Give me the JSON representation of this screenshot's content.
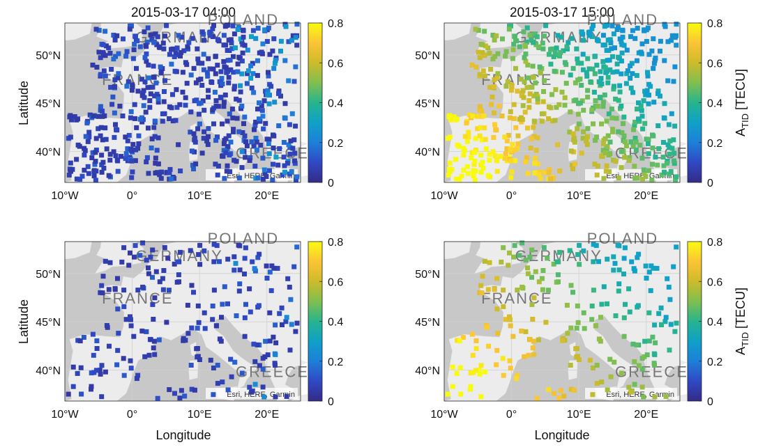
{
  "attribution": "Esri, HERE, Garmin",
  "colors": {
    "land": "#ececec",
    "sea": "#c8c8c8",
    "grid": "#cfcfcf",
    "colormap": [
      "#352a87",
      "#2f49c4",
      "#1e7fd9",
      "#0fa1c8",
      "#27b48e",
      "#80bf4f",
      "#cdbb2a",
      "#fbc436",
      "#f9fb0e"
    ]
  },
  "map_labels": [
    "FRANCE",
    "GERMANY",
    "POLAND",
    "GREECE"
  ],
  "chart_data": [
    {
      "type": "scatter",
      "title": "2015-03-17 04:00",
      "xlabel": "",
      "ylabel": "Latitude",
      "xlim": [
        -10,
        25
      ],
      "ylim": [
        36.8,
        53.3
      ],
      "xticks": [
        "10°W",
        "0°",
        "10°E",
        "20°E"
      ],
      "yticks": [
        "40°N",
        "45°N",
        "50°N"
      ],
      "colorbar": {
        "label": "",
        "ticks": [
          "0",
          "0.2",
          "0.4",
          "0.6",
          "0.8"
        ],
        "range": [
          0,
          0.8
        ]
      },
      "points": {
        "description": "dense network of stations across Europe",
        "count": 600,
        "value_range": [
          0.05,
          0.25
        ],
        "typical_value": 0.1
      }
    },
    {
      "type": "scatter",
      "title": "2015-03-17 15:00",
      "xlabel": "",
      "ylabel": "",
      "xlim": [
        -10,
        25
      ],
      "ylim": [
        36.8,
        53.3
      ],
      "xticks": [
        "10°W",
        "0°",
        "10°E",
        "20°E"
      ],
      "yticks": [
        "40°N",
        "45°N",
        "50°N"
      ],
      "colorbar": {
        "label": "A_TID [TECU]",
        "ticks": [
          "0",
          "0.2",
          "0.4",
          "0.6",
          "0.8"
        ],
        "range": [
          0,
          0.8
        ]
      },
      "points": {
        "description": "dense network; high amplitude in south-west, lower toward north-east",
        "count": 600,
        "value_range": [
          0.25,
          0.8
        ]
      }
    },
    {
      "type": "scatter",
      "title": "",
      "xlabel": "Longitude",
      "ylabel": "Latitude",
      "xlim": [
        -10,
        25
      ],
      "ylim": [
        36.8,
        53.3
      ],
      "xticks": [
        "10°W",
        "0°",
        "10°E",
        "20°E"
      ],
      "yticks": [
        "40°N",
        "45°N",
        "50°N"
      ],
      "colorbar": {
        "label": "",
        "ticks": [
          "0",
          "0.2",
          "0.4",
          "0.6",
          "0.8"
        ],
        "range": [
          0,
          0.8
        ]
      },
      "points": {
        "description": "sparse station subset",
        "count": 230,
        "value_range": [
          0.05,
          0.2
        ],
        "typical_value": 0.1
      }
    },
    {
      "type": "scatter",
      "title": "",
      "xlabel": "Longitude",
      "ylabel": "",
      "xlim": [
        -10,
        25
      ],
      "ylim": [
        36.8,
        53.3
      ],
      "xticks": [
        "10°W",
        "0°",
        "10°E",
        "20°E"
      ],
      "yticks": [
        "40°N",
        "45°N",
        "50°N"
      ],
      "colorbar": {
        "label": "A_TID [TECU]",
        "ticks": [
          "0",
          "0.2",
          "0.4",
          "0.6",
          "0.8"
        ],
        "range": [
          0,
          0.8
        ]
      },
      "points": {
        "description": "sparse station subset; high amplitude in south-west, lower toward north-east",
        "count": 230,
        "value_range": [
          0.3,
          0.8
        ]
      }
    }
  ]
}
